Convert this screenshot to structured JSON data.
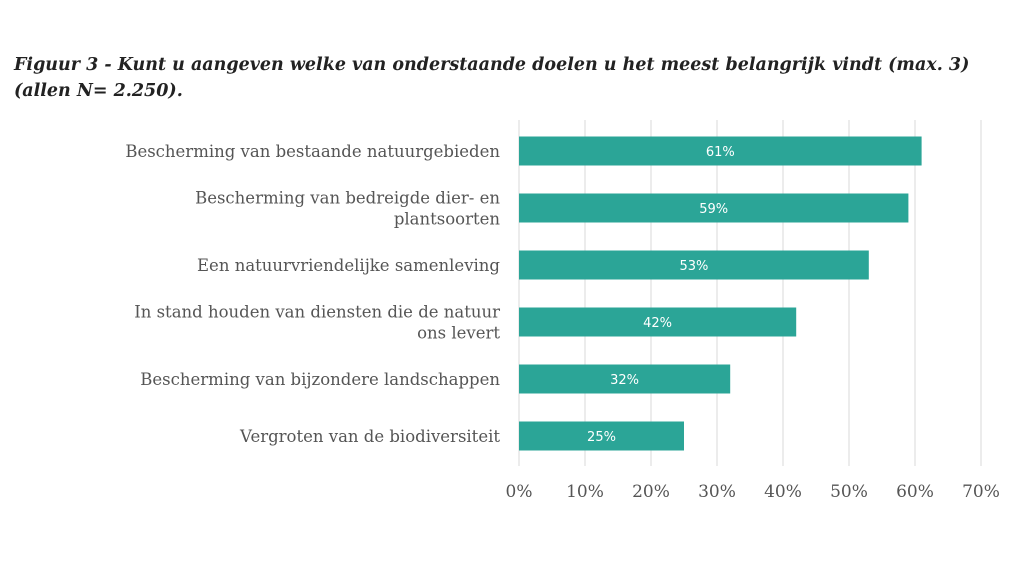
{
  "title": {
    "line1": "Figuur 3 - Kunt u aangeven welke van onderstaande doelen u het meest belangrijk vindt (max. 3)",
    "line2": "(allen N= 2.250)."
  },
  "chart_data": {
    "type": "bar",
    "orientation": "horizontal",
    "categories": [
      [
        "Bescherming van bestaande natuurgebieden"
      ],
      [
        "Bescherming van bedreigde dier- en",
        "plantsoorten"
      ],
      [
        "Een natuurvriendelijke samenleving"
      ],
      [
        "In stand houden van diensten die de natuur",
        "ons levert"
      ],
      [
        "Bescherming van bijzondere landschappen"
      ],
      [
        "Vergroten van de biodiversiteit"
      ]
    ],
    "values": [
      61,
      59,
      53,
      42,
      32,
      25
    ],
    "data_labels": [
      "61%",
      "59%",
      "53%",
      "42%",
      "32%",
      "25%"
    ],
    "xlim": [
      0,
      70
    ],
    "xticks": [
      0,
      10,
      20,
      30,
      40,
      50,
      60,
      70
    ],
    "xtick_labels": [
      "0%",
      "10%",
      "20%",
      "30%",
      "40%",
      "50%",
      "60%",
      "70%"
    ],
    "grid": "vertical",
    "bar_color": "#2ba597",
    "grid_color": "#d9d9d9"
  }
}
